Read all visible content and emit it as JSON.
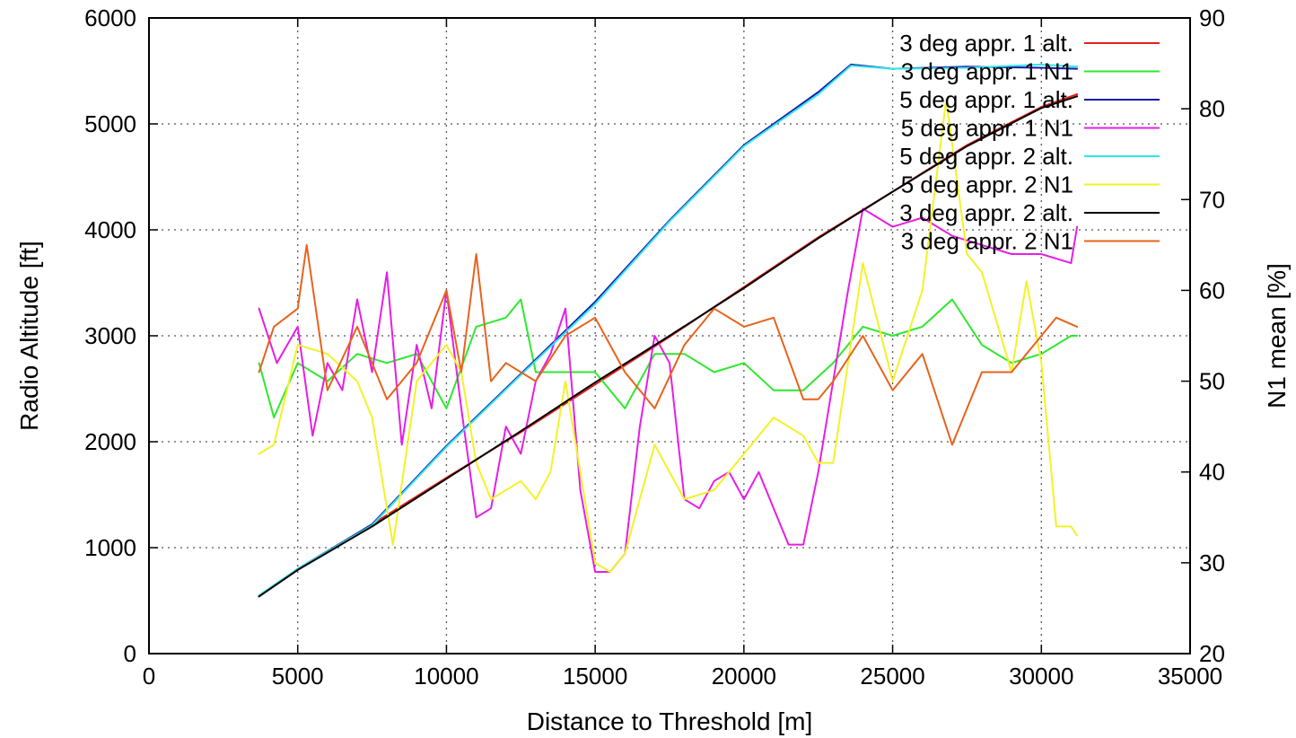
{
  "chart_data": {
    "type": "line",
    "title": "",
    "xlabel": "Distance to Threshold [m]",
    "ylabel": "Radio Altitude [ft]",
    "y2label": "N1 mean [%]",
    "xlim": [
      0,
      35000
    ],
    "ylim": [
      0,
      6000
    ],
    "y2lim": [
      20,
      90
    ],
    "x_ticks": [
      0,
      5000,
      10000,
      15000,
      20000,
      25000,
      30000,
      35000
    ],
    "y_ticks": [
      0,
      1000,
      2000,
      3000,
      4000,
      5000,
      6000
    ],
    "y2_ticks": [
      20,
      30,
      40,
      50,
      60,
      70,
      80,
      90
    ],
    "grid": true,
    "legend_position": "top-right",
    "series": [
      {
        "name": "3 deg appr. 1 alt.",
        "axis": "left",
        "color": "#e8201c",
        "x": [
          3700,
          5000,
          7500,
          10000,
          12500,
          15000,
          17500,
          20000,
          22500,
          25000,
          27500,
          30000,
          31200
        ],
        "y": [
          540,
          790,
          1220,
          1660,
          2090,
          2540,
          2990,
          3460,
          3930,
          4360,
          4800,
          5160,
          5280
        ]
      },
      {
        "name": "3 deg appr. 1 N1",
        "axis": "right",
        "color": "#2ee82e",
        "x": [
          3700,
          4200,
          5000,
          6000,
          7000,
          8000,
          9000,
          10000,
          11000,
          12000,
          12500,
          13000,
          14000,
          15000,
          16000,
          17000,
          18000,
          19000,
          20000,
          21000,
          22000,
          23000,
          24000,
          25000,
          26000,
          27000,
          28000,
          29000,
          30000,
          31000,
          31200
        ],
        "y": [
          52,
          46,
          52,
          50,
          53,
          52,
          53,
          47,
          56,
          57,
          59,
          51,
          51,
          51,
          47,
          53,
          53,
          51,
          52,
          49,
          49,
          52,
          56,
          55,
          56,
          59,
          54,
          52,
          53,
          55,
          55
        ]
      },
      {
        "name": "5 deg appr. 1 alt.",
        "axis": "left",
        "color": "#1a14a8",
        "x": [
          3700,
          5000,
          7500,
          10000,
          12500,
          15000,
          17500,
          20000,
          22500,
          23600,
          25000,
          27500,
          30000,
          31200
        ],
        "y": [
          540,
          800,
          1220,
          1960,
          2640,
          3320,
          4090,
          4800,
          5300,
          5560,
          5520,
          5540,
          5530,
          5520
        ]
      },
      {
        "name": "5 deg appr. 1 N1",
        "axis": "right",
        "color": "#e61ee6",
        "x": [
          3700,
          4300,
          5000,
          5500,
          6000,
          6500,
          7000,
          7500,
          8000,
          8500,
          9000,
          9500,
          10000,
          10500,
          11000,
          11500,
          12000,
          12500,
          13000,
          13500,
          14000,
          14500,
          15000,
          15500,
          16000,
          16500,
          17000,
          17500,
          18000,
          18500,
          19000,
          19500,
          20000,
          20500,
          21000,
          21500,
          22000,
          22500,
          23000,
          23500,
          24000,
          25000,
          26000,
          27000,
          28000,
          29000,
          30000,
          31000,
          31200
        ],
        "y": [
          58,
          52,
          56,
          44,
          52,
          49,
          59,
          51,
          62,
          43,
          54,
          47,
          60,
          47,
          35,
          36,
          45,
          42,
          50,
          53,
          58,
          38,
          29,
          29,
          31,
          45,
          55,
          52,
          37,
          36,
          39,
          40,
          37,
          40,
          36,
          32,
          32,
          40,
          50,
          60,
          69,
          67,
          68,
          66,
          65,
          64,
          64,
          63,
          67
        ]
      },
      {
        "name": "5 deg appr. 2 alt.",
        "axis": "left",
        "color": "#2ce8e8",
        "x": [
          3700,
          5000,
          7500,
          10000,
          12500,
          15000,
          17500,
          20000,
          22500,
          23600,
          25000,
          27500,
          30000,
          31200
        ],
        "y": [
          550,
          800,
          1210,
          1950,
          2630,
          3300,
          4080,
          4790,
          5280,
          5550,
          5520,
          5530,
          5560,
          5540
        ]
      },
      {
        "name": "5 deg appr. 2 N1",
        "axis": "right",
        "color": "#f2f227",
        "x": [
          3700,
          4200,
          5000,
          6000,
          7000,
          7500,
          8000,
          8200,
          9000,
          10000,
          10500,
          11000,
          11500,
          12000,
          12500,
          13000,
          13500,
          14000,
          15000,
          15500,
          16000,
          17000,
          18000,
          19000,
          20000,
          21000,
          22000,
          22500,
          23000,
          24000,
          25000,
          26000,
          26800,
          27500,
          28000,
          29000,
          29500,
          30000,
          30500,
          31000,
          31200
        ],
        "y": [
          42,
          43,
          54,
          53,
          50,
          46,
          36,
          32,
          50,
          54,
          51,
          41,
          37,
          38,
          39,
          37,
          40,
          50,
          30,
          29,
          31,
          43,
          37,
          38,
          42,
          46,
          44,
          41,
          41,
          63,
          50,
          60,
          81,
          64,
          62,
          51,
          61,
          52,
          34,
          34,
          33
        ]
      },
      {
        "name": "3 deg appr. 2 alt.",
        "axis": "left",
        "color": "#000000",
        "x": [
          3700,
          5000,
          7500,
          10000,
          12500,
          15000,
          17500,
          20000,
          22500,
          25000,
          27500,
          30000,
          31200
        ],
        "y": [
          540,
          790,
          1200,
          1650,
          2100,
          2560,
          3000,
          3450,
          3920,
          4360,
          4790,
          5150,
          5260
        ]
      },
      {
        "name": "3 deg appr. 2 N1",
        "axis": "right",
        "color": "#e8621c",
        "x": [
          3700,
          4200,
          5000,
          5300,
          6000,
          7000,
          8000,
          9000,
          10000,
          10500,
          11000,
          11500,
          12000,
          13000,
          14000,
          15000,
          16000,
          17000,
          18000,
          19000,
          20000,
          21000,
          22000,
          22500,
          23000,
          24000,
          25000,
          26000,
          27000,
          28000,
          29000,
          30000,
          30500,
          31200
        ],
        "y": [
          51,
          56,
          58,
          65,
          49,
          56,
          48,
          52,
          60,
          51,
          64,
          50,
          52,
          50,
          55,
          57,
          51,
          47,
          54,
          58,
          56,
          57,
          48,
          48,
          50,
          55,
          49,
          53,
          43,
          51,
          51,
          55,
          57,
          56
        ]
      }
    ]
  }
}
